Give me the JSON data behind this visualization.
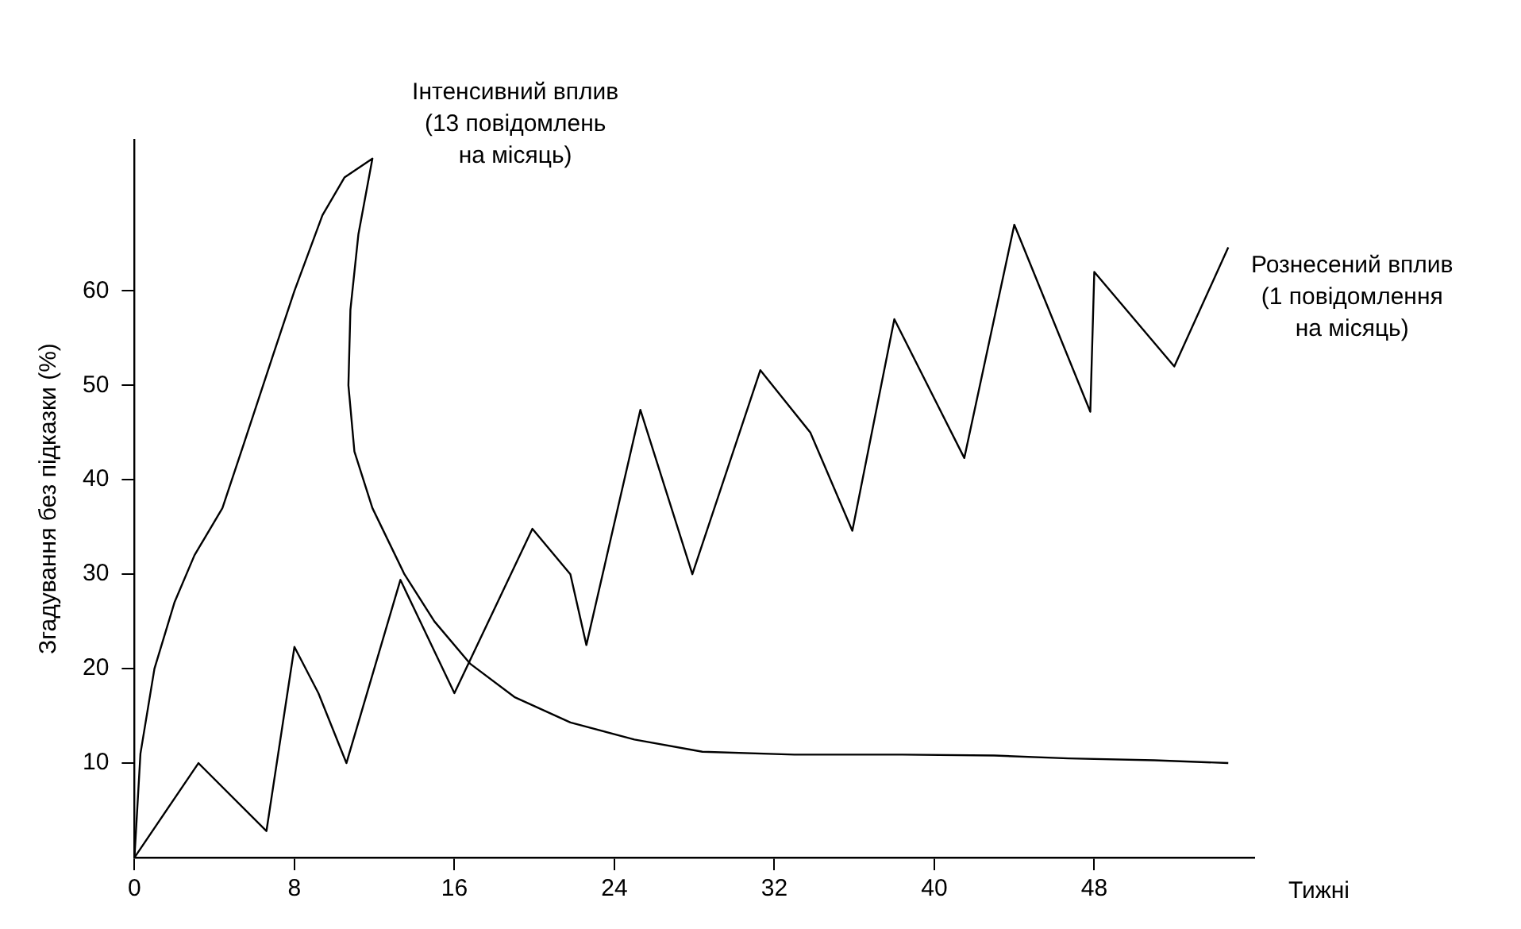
{
  "chart_data": {
    "type": "line",
    "xlabel": "Тижні",
    "ylabel": "Згадування без підказки (%)",
    "xlim": [
      0,
      56
    ],
    "ylim": [
      0,
      76
    ],
    "xticks": [
      0,
      8,
      16,
      24,
      32,
      40,
      48
    ],
    "yticks": [
      10,
      20,
      30,
      40,
      50,
      60
    ],
    "grid": false,
    "legend": false,
    "marker": "none",
    "line_style": "solid",
    "series": [
      {
        "name": "Інтенсивний вплив (13 повідомлень на місяць)",
        "color": "#000000",
        "x": [
          0,
          0.3,
          1,
          2,
          3,
          4.4,
          5.5,
          6.9,
          8,
          9.4,
          10.5,
          11.9,
          11.2,
          10.8,
          10.7,
          11,
          11.9,
          13.5,
          15,
          16.8,
          19,
          21.8,
          25,
          28.4,
          33,
          38.4,
          43,
          46.7,
          51,
          54.7
        ],
        "values": [
          0,
          11,
          20,
          27,
          32,
          37,
          44,
          53,
          60,
          68,
          72,
          74,
          66,
          58,
          50,
          43,
          37,
          30,
          25,
          20.5,
          17,
          14.3,
          12.5,
          11.2,
          10.9,
          10.9,
          10.8,
          10.5,
          10.3,
          10
        ]
      },
      {
        "name": "Рознесений вплив (1 повідомлення на місяць)",
        "color": "#000000",
        "x": [
          0,
          3.2,
          6.6,
          8,
          9.2,
          10.6,
          13.3,
          16,
          19.9,
          21.8,
          22.6,
          25.3,
          27.9,
          31.3,
          33.8,
          35.9,
          38,
          41.5,
          44,
          47.8,
          48,
          52,
          54.7
        ],
        "values": [
          0,
          10,
          2.8,
          22.3,
          17.4,
          10,
          29.4,
          17.4,
          34.8,
          30,
          22.5,
          47.4,
          30,
          51.6,
          45,
          34.6,
          57,
          42.3,
          67,
          47.2,
          62,
          52,
          64.6
        ]
      }
    ]
  }
}
